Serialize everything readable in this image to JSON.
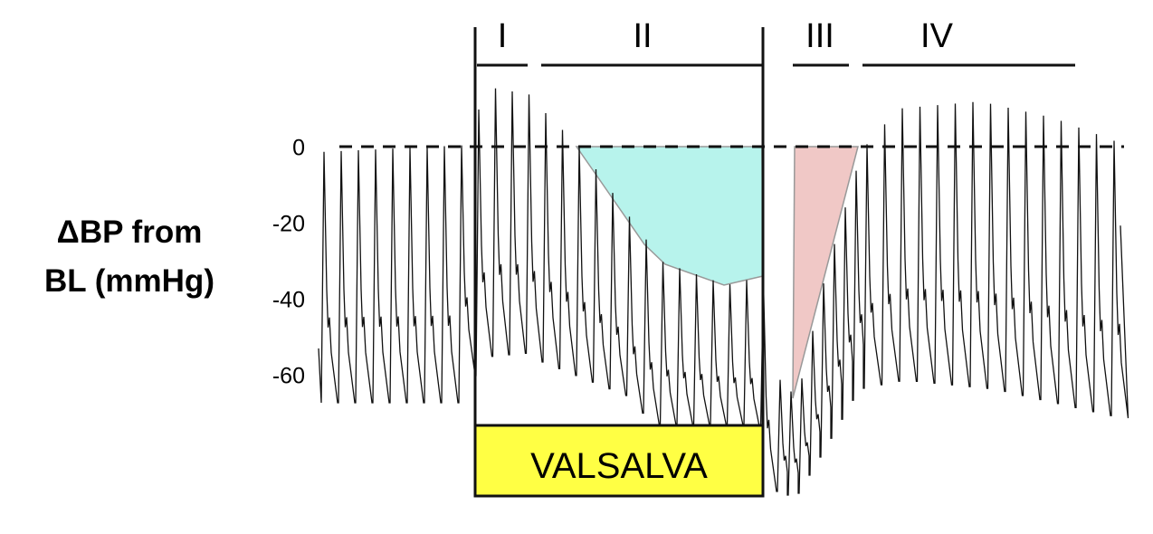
{
  "axis_label": [
    "ΔBP from",
    "BL (mmHg)"
  ],
  "yticks": [
    0,
    -20,
    -40,
    -60
  ],
  "phases": [
    "I",
    "II",
    "III",
    "IV"
  ],
  "maneuver": "VALSALVA"
}
